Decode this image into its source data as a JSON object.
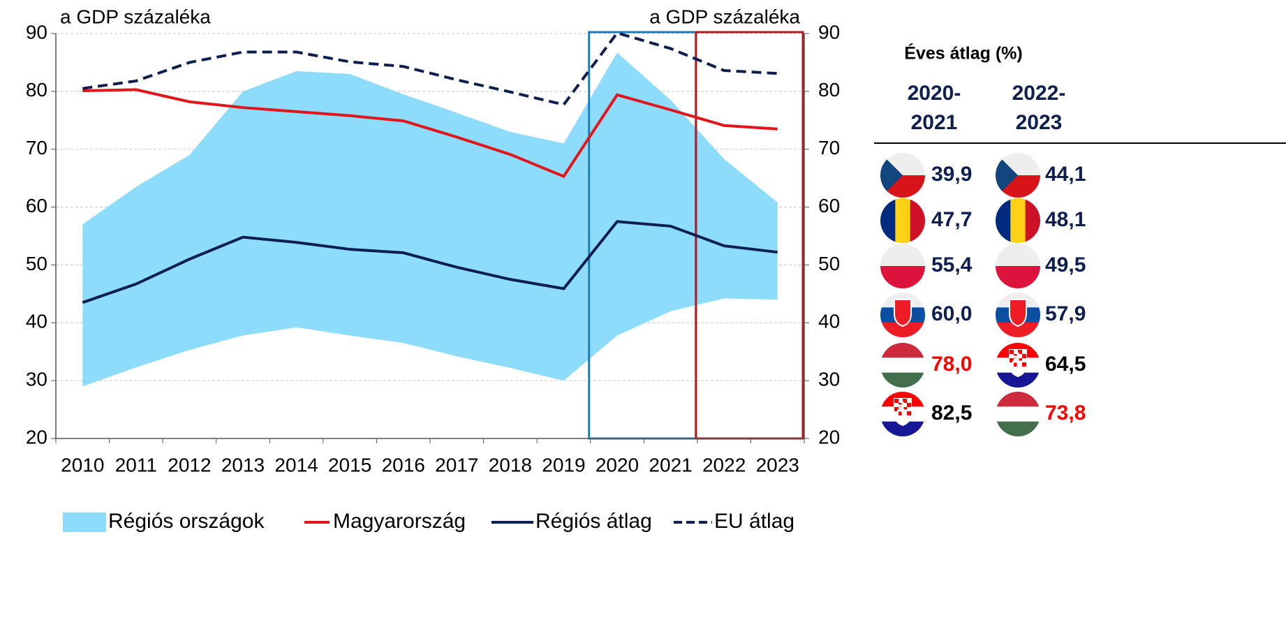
{
  "chart_data": {
    "type": "line",
    "y_label": "a GDP százaléka",
    "y2_label": "a GDP százaléka",
    "categories": [
      "2010",
      "2011",
      "2012",
      "2013",
      "2014",
      "2015",
      "2016",
      "2017",
      "2018",
      "2019",
      "2020",
      "2021",
      "2022",
      "2023"
    ],
    "ylim": [
      20,
      90
    ],
    "yticks": [
      20,
      30,
      40,
      50,
      60,
      70,
      80,
      90
    ],
    "y2lim": [
      20,
      90
    ],
    "y2ticks": [
      20,
      30,
      40,
      50,
      60,
      70,
      80,
      90
    ],
    "grid": true,
    "legend": "bottom",
    "band": {
      "name": "Régiós országok",
      "color": "#8ddcfb",
      "upper": [
        57,
        63.5,
        69,
        80,
        83.5,
        83,
        79.5,
        76.3,
        73,
        71,
        86.7,
        78.5,
        68.3,
        60.8
      ],
      "lower": [
        29,
        32.3,
        35.3,
        37.8,
        39.2,
        37.8,
        36.5,
        34.2,
        32.2,
        30,
        37.8,
        42,
        44.2,
        44
      ]
    },
    "series": [
      {
        "name": "Magyarország",
        "color": "#e0161b",
        "dashed": false,
        "values": [
          80.1,
          80.3,
          78.2,
          77.2,
          76.5,
          75.8,
          74.9,
          72.1,
          69.1,
          65.3,
          79.4,
          76.8,
          74.1,
          73.5
        ]
      },
      {
        "name": "Régiós átlag",
        "color": "#0d1f4f",
        "dashed": false,
        "values": [
          43.5,
          46.7,
          51,
          54.8,
          53.9,
          52.7,
          52.1,
          49.6,
          47.5,
          45.9,
          57.5,
          56.7,
          53.3,
          52.2
        ]
      },
      {
        "name": "EU átlag",
        "color": "#0d1f4f",
        "dashed": true,
        "values": [
          80.5,
          81.8,
          85,
          86.8,
          86.8,
          85.1,
          84.3,
          82,
          79.9,
          77.7,
          90.1,
          87.4,
          83.6,
          83.1
        ]
      }
    ]
  },
  "table": {
    "title": "Éves átlag (%)",
    "columns": [
      {
        "header": [
          "2020-",
          "2021"
        ],
        "values": [
          39.9,
          47.7,
          55.4,
          60.0,
          78.0,
          82.5
        ],
        "value_labels": [
          "39,9",
          "47,7",
          "55,4",
          "60,0",
          "78,0",
          "82,5"
        ],
        "colors": [
          "#0d1f4f",
          "#0d1f4f",
          "#0d1f4f",
          "#0d1f4f",
          "#ff0000",
          "#000000"
        ]
      },
      {
        "header": [
          "2022-",
          "2023"
        ],
        "values": [
          44.1,
          48.1,
          49.5,
          57.9,
          64.5,
          73.8
        ],
        "value_labels": [
          "44,1",
          "48,1",
          "49,5",
          "57,9",
          "64,5",
          "73,8"
        ],
        "colors": [
          "#0d1f4f",
          "#0d1f4f",
          "#0d1f4f",
          "#0d1f4f",
          "#000000",
          "#ff0000"
        ]
      }
    ]
  }
}
